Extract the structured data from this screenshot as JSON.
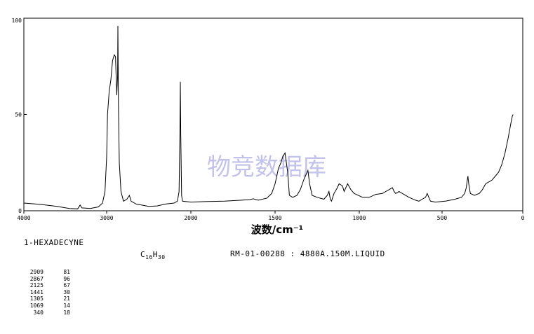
{
  "chart_data": {
    "type": "line",
    "title": "",
    "xlabel": "波数/cm⁻¹",
    "ylabel": "",
    "xlim": [
      4000,
      0
    ],
    "ylim": [
      0,
      100
    ],
    "x_ticks": [
      "4000",
      "3000",
      "2000",
      "1500",
      "1000",
      "500",
      "0"
    ],
    "y_ticks": [
      "100",
      "50",
      "0"
    ],
    "grid": false,
    "watermark": "物竞数据库",
    "series": [
      {
        "points": [
          [
            4000,
            4
          ],
          [
            3800,
            3.3
          ],
          [
            3600,
            2.3
          ],
          [
            3450,
            1.2
          ],
          [
            3350,
            1.0
          ],
          [
            3320,
            3.0
          ],
          [
            3300,
            1.5
          ],
          [
            3200,
            1.2
          ],
          [
            3100,
            2
          ],
          [
            3050,
            4
          ],
          [
            3020,
            10
          ],
          [
            3000,
            28
          ],
          [
            2990,
            50
          ],
          [
            2970,
            62
          ],
          [
            2950,
            68
          ],
          [
            2930,
            78
          ],
          [
            2909,
            81
          ],
          [
            2895,
            80
          ],
          [
            2880,
            60
          ],
          [
            2870,
            70
          ],
          [
            2867,
            96
          ],
          [
            2860,
            55
          ],
          [
            2850,
            25
          ],
          [
            2830,
            10
          ],
          [
            2800,
            5
          ],
          [
            2760,
            6
          ],
          [
            2730,
            8
          ],
          [
            2710,
            5
          ],
          [
            2650,
            3.5
          ],
          [
            2500,
            2.3
          ],
          [
            2400,
            2.5
          ],
          [
            2300,
            3.5
          ],
          [
            2200,
            4
          ],
          [
            2160,
            5
          ],
          [
            2140,
            10
          ],
          [
            2130,
            40
          ],
          [
            2125,
            67
          ],
          [
            2120,
            40
          ],
          [
            2110,
            8
          ],
          [
            2100,
            5
          ],
          [
            2000,
            4.5
          ],
          [
            1900,
            4.8
          ],
          [
            1800,
            5
          ],
          [
            1700,
            5.5
          ],
          [
            1650,
            5.8
          ],
          [
            1630,
            6.2
          ],
          [
            1600,
            5.5
          ],
          [
            1550,
            6.5
          ],
          [
            1520,
            9
          ],
          [
            1500,
            14
          ],
          [
            1480,
            22
          ],
          [
            1465,
            25
          ],
          [
            1455,
            28
          ],
          [
            1441,
            30
          ],
          [
            1425,
            20
          ],
          [
            1415,
            8
          ],
          [
            1395,
            7
          ],
          [
            1370,
            8
          ],
          [
            1350,
            11
          ],
          [
            1330,
            16
          ],
          [
            1320,
            18
          ],
          [
            1305,
            21
          ],
          [
            1295,
            14
          ],
          [
            1280,
            8
          ],
          [
            1250,
            7
          ],
          [
            1210,
            6
          ],
          [
            1190,
            8
          ],
          [
            1180,
            10
          ],
          [
            1172,
            6
          ],
          [
            1165,
            5
          ],
          [
            1150,
            9
          ],
          [
            1130,
            12
          ],
          [
            1120,
            14
          ],
          [
            1100,
            13
          ],
          [
            1090,
            10
          ],
          [
            1069,
            14
          ],
          [
            1050,
            11
          ],
          [
            1030,
            9
          ],
          [
            980,
            7
          ],
          [
            940,
            7
          ],
          [
            900,
            8.5
          ],
          [
            860,
            9
          ],
          [
            840,
            10
          ],
          [
            820,
            11
          ],
          [
            800,
            12
          ],
          [
            790,
            10
          ],
          [
            780,
            9
          ],
          [
            760,
            10
          ],
          [
            740,
            9
          ],
          [
            700,
            7
          ],
          [
            660,
            5.5
          ],
          [
            640,
            5
          ],
          [
            620,
            6
          ],
          [
            600,
            7
          ],
          [
            590,
            9
          ],
          [
            580,
            7
          ],
          [
            570,
            5
          ],
          [
            540,
            4.5
          ],
          [
            480,
            5
          ],
          [
            420,
            6
          ],
          [
            380,
            7
          ],
          [
            360,
            9
          ],
          [
            350,
            12
          ],
          [
            345,
            15
          ],
          [
            340,
            18
          ],
          [
            335,
            14
          ],
          [
            325,
            9
          ],
          [
            300,
            8
          ],
          [
            270,
            9
          ],
          [
            250,
            11
          ],
          [
            230,
            14
          ],
          [
            210,
            15
          ],
          [
            190,
            16
          ],
          [
            170,
            18
          ],
          [
            150,
            20
          ],
          [
            130,
            24
          ],
          [
            110,
            30
          ],
          [
            90,
            38
          ],
          [
            75,
            45
          ],
          [
            65,
            49
          ],
          [
            60,
            50
          ]
        ]
      }
    ]
  },
  "info": {
    "compound_name": "1-HEXADECYNE",
    "formula_c": "C",
    "formula_c_sub": "16",
    "formula_h": "H",
    "formula_h_sub": "30",
    "spectrum_info": "RM-01-00288 : 4880A.150M.LIQUID"
  },
  "peak_table": [
    {
      "wavenumber": "2909",
      "intensity": "81"
    },
    {
      "wavenumber": "2867",
      "intensity": "96"
    },
    {
      "wavenumber": "2125",
      "intensity": "67"
    },
    {
      "wavenumber": "1441",
      "intensity": "30"
    },
    {
      "wavenumber": "1305",
      "intensity": "21"
    },
    {
      "wavenumber": "1069",
      "intensity": "14"
    },
    {
      "wavenumber": "340",
      "intensity": "18"
    }
  ]
}
